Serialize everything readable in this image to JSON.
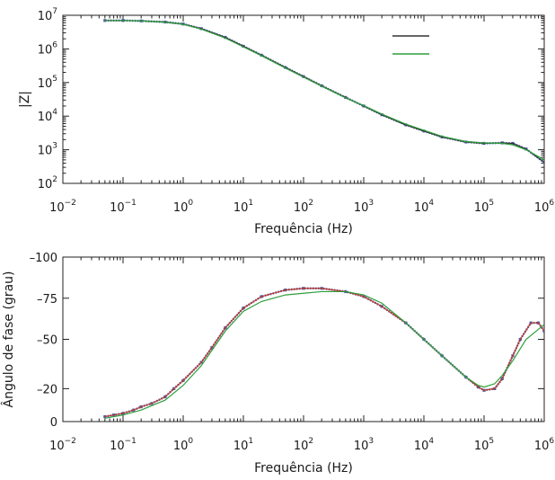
{
  "chart_data": [
    {
      "type": "line",
      "xscale": "log",
      "yscale": "log",
      "xlim": [
        0.01,
        1000000
      ],
      "ylim": [
        100,
        10000000
      ],
      "xlabel": "Frequência (Hz)",
      "ylabel": "|Z|",
      "x_ticks": [
        {
          "base": "10",
          "exp": "−2"
        },
        {
          "base": "10",
          "exp": "−1"
        },
        {
          "base": "10",
          "exp": "0"
        },
        {
          "base": "10",
          "exp": "1"
        },
        {
          "base": "10",
          "exp": "2"
        },
        {
          "base": "10",
          "exp": "3"
        },
        {
          "base": "10",
          "exp": "4"
        },
        {
          "base": "10",
          "exp": "5"
        },
        {
          "base": "10",
          "exp": "6"
        }
      ],
      "y_ticks": [
        {
          "base": "10",
          "exp": "2"
        },
        {
          "base": "10",
          "exp": "3"
        },
        {
          "base": "10",
          "exp": "4"
        },
        {
          "base": "10",
          "exp": "5"
        },
        {
          "base": "10",
          "exp": "6"
        },
        {
          "base": "10",
          "exp": "7"
        }
      ],
      "legend": {
        "placement": "top-right",
        "entries": [
          {
            "label": "",
            "color": "#333333"
          },
          {
            "label": "",
            "color": "#2e9e3a"
          }
        ]
      },
      "series": [
        {
          "color": "#4a5ea8",
          "style": "markers",
          "x": [
            0.05,
            0.1,
            0.2,
            0.5,
            1,
            2,
            5,
            10,
            20,
            50,
            100,
            200,
            500,
            1000,
            2000,
            5000,
            10000,
            20000,
            50000,
            100000,
            200000,
            300000,
            500000,
            1000000
          ],
          "y": [
            7000000,
            7000000,
            6800000,
            6300000,
            5500000,
            4000000,
            2200000,
            1200000,
            650000,
            280000,
            150000,
            80000,
            36000,
            20000,
            11000,
            5500,
            3600,
            2400,
            1700,
            1550,
            1600,
            1550,
            1050,
            420
          ]
        },
        {
          "color": "#333333",
          "style": "line",
          "x": [
            0.05,
            0.1,
            0.2,
            0.5,
            1,
            2,
            5,
            10,
            20,
            50,
            100,
            200,
            500,
            1000,
            2000,
            5000,
            10000,
            20000,
            50000,
            100000,
            200000,
            300000,
            500000,
            1000000
          ],
          "y": [
            7000000,
            7000000,
            6800000,
            6300000,
            5500000,
            4000000,
            2200000,
            1200000,
            650000,
            280000,
            150000,
            80000,
            36000,
            20000,
            11000,
            5500,
            3600,
            2400,
            1700,
            1550,
            1600,
            1550,
            1050,
            420
          ]
        },
        {
          "color": "#2e9e3a",
          "style": "line",
          "x": [
            0.05,
            0.1,
            0.2,
            0.5,
            1,
            2,
            5,
            10,
            20,
            50,
            100,
            200,
            500,
            1000,
            2000,
            5000,
            10000,
            20000,
            50000,
            100000,
            200000,
            300000,
            500000,
            1000000
          ],
          "y": [
            7000000,
            7000000,
            6800000,
            6200000,
            5400000,
            3900000,
            2100000,
            1150000,
            630000,
            270000,
            145000,
            78000,
            35000,
            20500,
            11500,
            5800,
            3800,
            2500,
            1750,
            1600,
            1550,
            1400,
            1000,
            500
          ]
        }
      ]
    },
    {
      "type": "line",
      "xscale": "log",
      "xlim": [
        0.01,
        1000000
      ],
      "ylim": [
        0,
        -100
      ],
      "xlabel": "Frequência (Hz)",
      "ylabel": "Ângulo de fase (grau)",
      "x_ticks": [
        {
          "base": "10",
          "exp": "−2"
        },
        {
          "base": "10",
          "exp": "−1"
        },
        {
          "base": "10",
          "exp": "0"
        },
        {
          "base": "10",
          "exp": "1"
        },
        {
          "base": "10",
          "exp": "2"
        },
        {
          "base": "10",
          "exp": "3"
        },
        {
          "base": "10",
          "exp": "4"
        },
        {
          "base": "10",
          "exp": "5"
        },
        {
          "base": "10",
          "exp": "6"
        }
      ],
      "y_ticks": [
        {
          "value": 0,
          "label": "0"
        },
        {
          "value": -20,
          "label": "–20"
        },
        {
          "value": -50,
          "label": "–50"
        },
        {
          "value": -75,
          "label": "–75"
        },
        {
          "value": -100,
          "label": "–100"
        }
      ],
      "series": [
        {
          "color": "#4a5ea8",
          "style": "markers",
          "x": [
            0.05,
            0.07,
            0.1,
            0.15,
            0.2,
            0.3,
            0.5,
            0.7,
            1,
            2,
            3,
            5,
            10,
            20,
            50,
            100,
            200,
            500,
            1000,
            2000,
            5000,
            10000,
            20000,
            50000,
            80000,
            100000,
            150000,
            200000,
            300000,
            400000,
            600000,
            800000,
            1000000
          ],
          "y": [
            -3,
            -4,
            -5,
            -7,
            -9,
            -11,
            -15,
            -20,
            -25,
            -36,
            -45,
            -57,
            -69,
            -76,
            -80,
            -81,
            -81,
            -79,
            -76,
            -70,
            -60,
            -50,
            -40,
            -27,
            -21,
            -19,
            -20,
            -26,
            -40,
            -50,
            -60,
            -60,
            -55
          ]
        },
        {
          "color": "#c0392b",
          "style": "line",
          "x": [
            0.05,
            0.07,
            0.1,
            0.15,
            0.2,
            0.3,
            0.5,
            0.7,
            1,
            2,
            3,
            5,
            10,
            20,
            50,
            100,
            200,
            500,
            1000,
            2000,
            5000,
            10000,
            20000,
            50000,
            80000,
            100000,
            150000,
            200000,
            300000,
            400000,
            600000,
            800000,
            1000000
          ],
          "y": [
            -3,
            -4,
            -5,
            -7,
            -9,
            -11,
            -15,
            -20,
            -25,
            -36,
            -45,
            -57,
            -69,
            -76,
            -80,
            -81,
            -81,
            -79,
            -76,
            -70,
            -60,
            -50,
            -40,
            -27,
            -21,
            -19,
            -20,
            -26,
            -40,
            -50,
            -60,
            -60,
            -55
          ]
        },
        {
          "color": "#2e9e3a",
          "style": "line",
          "x": [
            0.05,
            0.1,
            0.2,
            0.5,
            1,
            2,
            5,
            10,
            20,
            50,
            100,
            200,
            500,
            1000,
            2000,
            5000,
            10000,
            20000,
            50000,
            80000,
            100000,
            150000,
            200000,
            300000,
            500000,
            1000000
          ],
          "y": [
            -2,
            -4,
            -7,
            -13,
            -22,
            -34,
            -55,
            -67,
            -73,
            -77,
            -78,
            -79,
            -79,
            -77,
            -72,
            -60,
            -50,
            -40,
            -27,
            -22,
            -21,
            -23,
            -28,
            -37,
            -50,
            -59
          ]
        }
      ]
    }
  ]
}
